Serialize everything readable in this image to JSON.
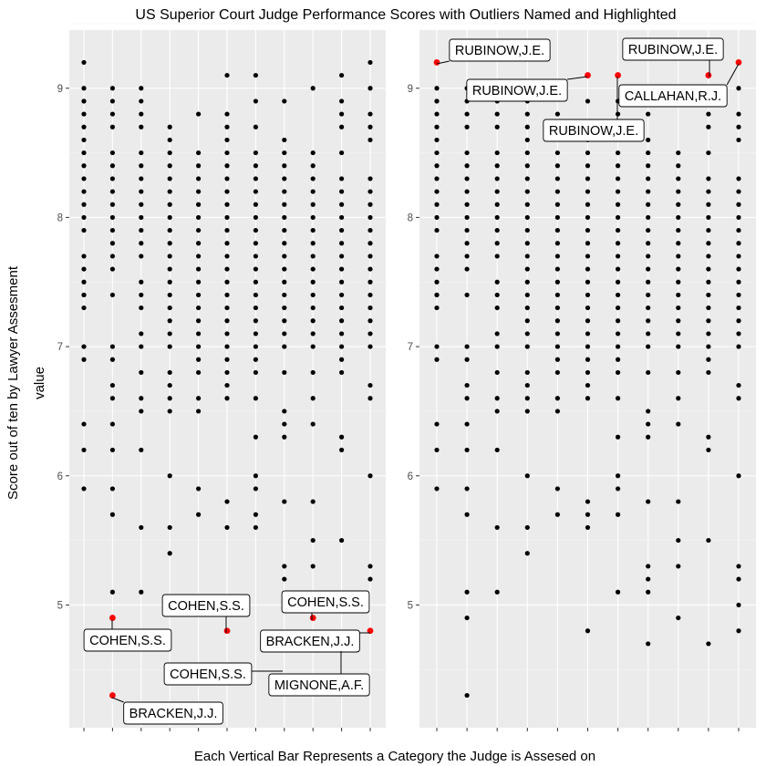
{
  "chart_data": {
    "type": "scatter",
    "title": "US Superior Court Judge Performance Scores with Outliers Named and Highlighted",
    "xlabel": "Each Vertical Bar Represents a Category the Judge is Assesed on",
    "ylabel_outer": "Score out of ten by Lawyer Assesment",
    "ylabel_inner": "value",
    "ylim": [
      4.05,
      9.45
    ],
    "yticks": [
      5,
      6,
      7,
      8,
      9
    ],
    "grid": true,
    "colors": {
      "point": "#000000",
      "outlier": "#ff0000",
      "panel": "#ebebeb",
      "grid": "#ffffff"
    },
    "panels": [
      {
        "categories": 11,
        "columns": [
          [
            9.2,
            9.0,
            8.9,
            8.9,
            8.8,
            8.7,
            8.6,
            8.5,
            8.4,
            8.3,
            8.2,
            8.1,
            8.0,
            7.9,
            7.7,
            7.6,
            7.5,
            7.4,
            7.4,
            7.3,
            7.0,
            6.9,
            6.4,
            6.2,
            5.9
          ],
          [
            9.0,
            8.9,
            8.8,
            8.7,
            8.5,
            8.4,
            8.3,
            8.2,
            8.1,
            8.0,
            7.9,
            7.8,
            7.7,
            7.6,
            7.4,
            7.0,
            6.9,
            6.7,
            6.6,
            6.4,
            6.2,
            5.9,
            5.7,
            5.1
          ],
          [
            9.0,
            8.9,
            8.8,
            8.7,
            8.5,
            8.4,
            8.3,
            8.2,
            8.1,
            8.0,
            7.9,
            7.8,
            7.7,
            7.5,
            7.4,
            7.3,
            7.1,
            7.0,
            6.8,
            6.6,
            6.5,
            6.2,
            5.6,
            5.1
          ],
          [
            8.7,
            8.6,
            8.5,
            8.4,
            8.3,
            8.2,
            8.1,
            8.0,
            7.9,
            7.8,
            7.7,
            7.6,
            7.5,
            7.4,
            7.3,
            7.2,
            7.1,
            7.0,
            6.8,
            6.7,
            6.6,
            6.5,
            6.0,
            5.6,
            5.4
          ],
          [
            8.8,
            8.5,
            8.4,
            8.3,
            8.2,
            8.1,
            8.0,
            7.9,
            7.8,
            7.7,
            7.6,
            7.5,
            7.4,
            7.3,
            7.2,
            7.1,
            7.0,
            6.9,
            6.8,
            6.6,
            6.5,
            5.9,
            5.7
          ],
          [
            9.1,
            8.8,
            8.7,
            8.6,
            8.5,
            8.4,
            8.3,
            8.2,
            8.1,
            8.0,
            7.9,
            7.8,
            7.7,
            7.6,
            7.5,
            7.4,
            7.3,
            7.2,
            7.1,
            7.0,
            6.9,
            6.8,
            6.7,
            6.6,
            5.8,
            5.6
          ],
          [
            9.1,
            8.9,
            8.7,
            8.5,
            8.4,
            8.3,
            8.2,
            8.1,
            8.0,
            7.9,
            7.8,
            7.7,
            7.6,
            7.5,
            7.4,
            7.3,
            7.2,
            7.1,
            7.0,
            6.9,
            6.8,
            6.6,
            6.3,
            6.0,
            5.9,
            5.7,
            5.6
          ],
          [
            8.9,
            8.6,
            8.5,
            8.4,
            8.3,
            8.2,
            8.1,
            8.0,
            7.9,
            7.8,
            7.7,
            7.6,
            7.5,
            7.4,
            7.3,
            7.2,
            7.1,
            7.0,
            6.8,
            6.5,
            6.4,
            6.3,
            5.8,
            5.3,
            5.2
          ],
          [
            9.0,
            8.5,
            8.4,
            8.3,
            8.2,
            8.1,
            8.0,
            7.9,
            7.8,
            7.7,
            7.6,
            7.5,
            7.4,
            7.3,
            7.2,
            7.1,
            7.0,
            6.8,
            6.6,
            6.4,
            5.8,
            5.5,
            5.3
          ],
          [
            9.1,
            8.9,
            8.8,
            8.7,
            8.5,
            8.3,
            8.2,
            8.1,
            8.0,
            7.9,
            7.8,
            7.7,
            7.6,
            7.5,
            7.4,
            7.3,
            7.2,
            7.1,
            7.0,
            6.9,
            6.8,
            6.3,
            6.2,
            5.5
          ],
          [
            9.2,
            9.0,
            8.8,
            8.7,
            8.6,
            8.3,
            8.2,
            8.1,
            8.0,
            7.9,
            7.8,
            7.7,
            7.6,
            7.5,
            7.4,
            7.3,
            7.2,
            7.1,
            7.0,
            6.7,
            6.6,
            6.0,
            5.3,
            5.2
          ]
        ],
        "outliers": [
          {
            "cat": 2,
            "value": 4.9
          },
          {
            "cat": 2,
            "value": 4.3
          },
          {
            "cat": 6,
            "value": 4.8
          },
          {
            "cat": 9,
            "value": 4.9
          },
          {
            "cat": 11,
            "value": 4.8
          }
        ],
        "labels": [
          {
            "text": "COHEN,S.S.",
            "cx": 140,
            "cy": 702,
            "ax": 123,
            "ay": 680
          },
          {
            "text": "BRACKEN,J.J.",
            "cx": 190,
            "cy": 782,
            "ax": 123,
            "ay": 765
          },
          {
            "text": "COHEN,S.S.",
            "cx": 226,
            "cy": 664,
            "ax": 248,
            "ay": 694
          },
          {
            "text": "COHEN,S.S.",
            "cx": 357,
            "cy": 660,
            "ax": 342,
            "ay": 680
          },
          {
            "text": "BRACKEN,J.J.",
            "cx": 340,
            "cy": 703,
            "ax": 406,
            "ay": 694
          },
          {
            "text": "COHEN,S.S.",
            "cx": 228,
            "cy": 739,
            "ax": 310,
            "ay": 736
          },
          {
            "text": "MIGNONE,A.F.",
            "cx": 350,
            "cy": 751,
            "ax": 374,
            "ay": 714
          }
        ]
      },
      {
        "categories": 11,
        "columns": [
          [
            9.0,
            8.9,
            8.9,
            8.8,
            8.7,
            8.6,
            8.5,
            8.4,
            8.3,
            8.2,
            8.1,
            8.0,
            7.9,
            7.7,
            7.6,
            7.5,
            7.4,
            7.4,
            7.3,
            7.0,
            6.9,
            6.4,
            6.2,
            5.9
          ],
          [
            9.0,
            8.9,
            8.8,
            8.7,
            8.5,
            8.4,
            8.3,
            8.2,
            8.1,
            8.0,
            7.9,
            7.8,
            7.7,
            7.6,
            7.4,
            7.0,
            6.9,
            6.7,
            6.6,
            6.4,
            6.2,
            5.9,
            5.7,
            5.1,
            4.9,
            4.3
          ],
          [
            9.0,
            8.9,
            8.8,
            8.7,
            8.5,
            8.4,
            8.3,
            8.2,
            8.1,
            8.0,
            7.9,
            7.8,
            7.7,
            7.5,
            7.4,
            7.3,
            7.1,
            7.0,
            6.8,
            6.6,
            6.5,
            6.2,
            5.6,
            5.1
          ],
          [
            8.9,
            8.8,
            8.7,
            8.6,
            8.5,
            8.4,
            8.3,
            8.2,
            8.1,
            8.0,
            7.9,
            7.8,
            7.7,
            7.6,
            7.5,
            7.4,
            7.3,
            7.2,
            7.1,
            7.0,
            6.8,
            6.7,
            6.6,
            6.5,
            6.0,
            5.6,
            5.4
          ],
          [
            8.8,
            8.5,
            8.4,
            8.3,
            8.2,
            8.1,
            8.0,
            7.9,
            7.8,
            7.7,
            7.6,
            7.5,
            7.4,
            7.3,
            7.2,
            7.1,
            7.0,
            6.9,
            6.8,
            6.6,
            6.5,
            5.9,
            5.7
          ],
          [
            8.9,
            8.7,
            8.6,
            8.5,
            8.4,
            8.3,
            8.2,
            8.1,
            8.0,
            7.9,
            7.8,
            7.7,
            7.6,
            7.5,
            7.4,
            7.3,
            7.2,
            7.1,
            7.0,
            6.9,
            6.8,
            6.7,
            6.6,
            5.8,
            5.7,
            5.6,
            4.8
          ],
          [
            8.9,
            8.8,
            8.7,
            8.5,
            8.4,
            8.3,
            8.2,
            8.1,
            8.0,
            7.9,
            7.8,
            7.7,
            7.6,
            7.5,
            7.4,
            7.3,
            7.2,
            7.1,
            7.0,
            6.9,
            6.8,
            6.6,
            6.3,
            6.0,
            5.9,
            5.7,
            5.1
          ],
          [
            8.8,
            8.6,
            8.5,
            8.4,
            8.3,
            8.2,
            8.1,
            8.0,
            7.9,
            7.8,
            7.7,
            7.6,
            7.5,
            7.4,
            7.3,
            7.2,
            7.1,
            7.0,
            6.8,
            6.5,
            6.4,
            6.3,
            5.8,
            5.3,
            5.2,
            5.1,
            4.7
          ],
          [
            8.5,
            8.4,
            8.3,
            8.2,
            8.1,
            8.0,
            7.9,
            7.8,
            7.7,
            7.6,
            7.5,
            7.4,
            7.3,
            7.2,
            7.1,
            7.0,
            6.8,
            6.6,
            6.4,
            5.8,
            5.5,
            5.3,
            4.9
          ],
          [
            8.9,
            8.8,
            8.7,
            8.5,
            8.3,
            8.2,
            8.1,
            8.0,
            7.9,
            7.8,
            7.7,
            7.6,
            7.5,
            7.4,
            7.3,
            7.2,
            7.1,
            7.0,
            6.9,
            6.8,
            6.3,
            6.2,
            5.5,
            4.7
          ],
          [
            9.0,
            8.8,
            8.7,
            8.6,
            8.3,
            8.2,
            8.1,
            8.0,
            7.9,
            7.8,
            7.7,
            7.6,
            7.5,
            7.4,
            7.3,
            7.2,
            7.1,
            7.0,
            6.7,
            6.6,
            6.0,
            5.3,
            5.2,
            5.0,
            4.8
          ]
        ],
        "outliers": [
          {
            "cat": 1,
            "value": 9.2
          },
          {
            "cat": 6,
            "value": 9.1
          },
          {
            "cat": 7,
            "value": 9.1
          },
          {
            "cat": 10,
            "value": 9.1
          },
          {
            "cat": 11,
            "value": 9.2
          }
        ],
        "labels": [
          {
            "text": "RUBINOW,J.E.",
            "cx": 548,
            "cy": 55,
            "ax": 479,
            "ay": 70
          },
          {
            "text": "RUBINOW,J.E.",
            "cx": 738,
            "cy": 54,
            "ax": 778,
            "ay": 84
          },
          {
            "text": "RUBINOW,J.E.",
            "cx": 567,
            "cy": 99,
            "ax": 644,
            "ay": 84
          },
          {
            "text": "CALLAHAN,R.J.",
            "cx": 738,
            "cy": 105,
            "ax": 810,
            "ay": 70
          },
          {
            "text": "RUBINOW,J.E.",
            "cx": 651,
            "cy": 143,
            "ax": 677,
            "ay": 84
          }
        ]
      }
    ]
  }
}
